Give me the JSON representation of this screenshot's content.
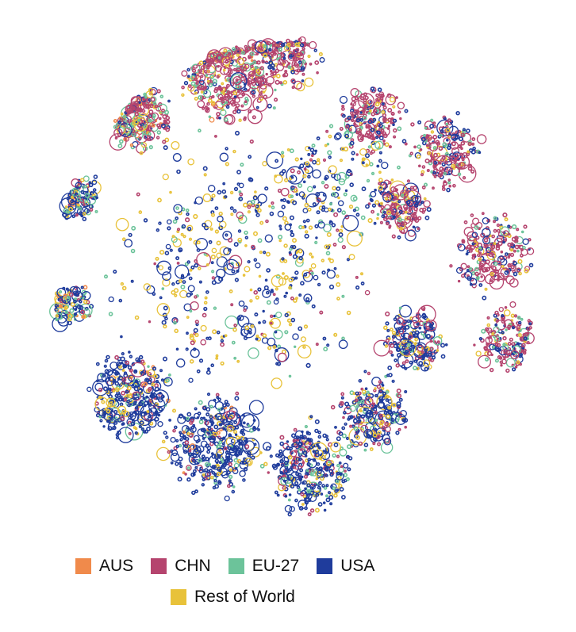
{
  "chart_data": {
    "type": "scatter",
    "title": "",
    "xlabel": "",
    "ylabel": "",
    "grid": false,
    "axes_visible": false,
    "marker": "hollow-circle",
    "legend_placement": "bottom-center",
    "colors": {
      "AUS": "#f08a4b",
      "CHN": "#b5446e",
      "EU-27": "#6cc39a",
      "USA": "#1f3c9c",
      "Rest of World": "#e8c23a"
    },
    "series": [
      {
        "name": "AUS",
        "color": "#f08a4b"
      },
      {
        "name": "CHN",
        "color": "#b5446e"
      },
      {
        "name": "EU-27",
        "color": "#6cc39a"
      },
      {
        "name": "USA",
        "color": "#1f3c9c"
      },
      {
        "name": "Rest of World",
        "color": "#e8c23a"
      }
    ],
    "legend": {
      "row1": [
        "AUS",
        "CHN",
        "EU-27",
        "USA"
      ],
      "row2": [
        "Rest of World"
      ]
    }
  }
}
